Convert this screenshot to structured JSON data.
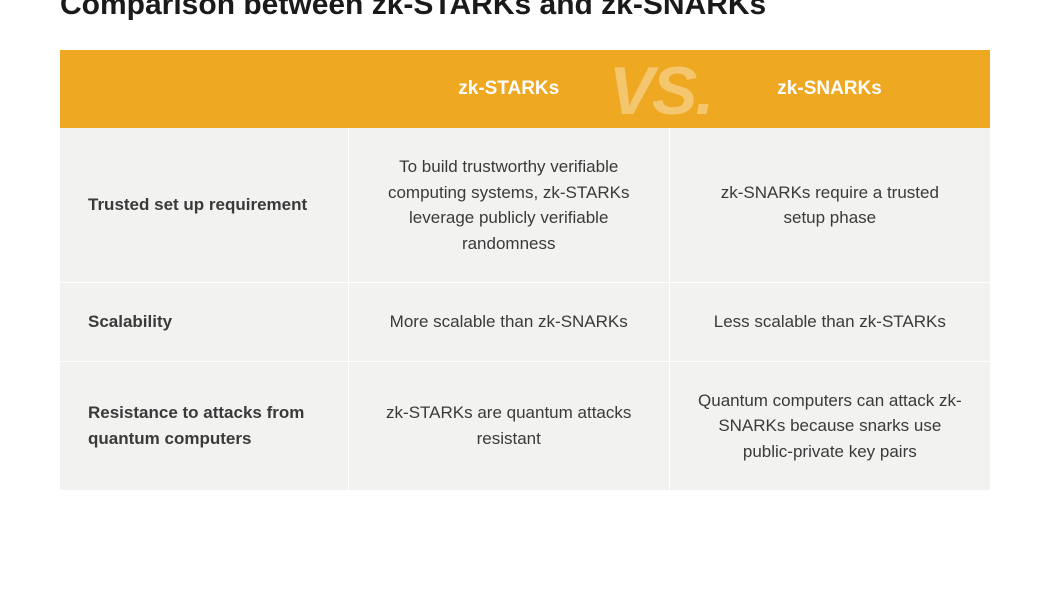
{
  "title": "Comparison between zk-STARKs and zk-SNARKs",
  "watermark": "VS.",
  "header": {
    "empty": "",
    "col1": "zk-STARKs",
    "col2": "zk-SNARKs"
  },
  "rows": [
    {
      "label": "Trusted set up requirement",
      "stark": "To build trustworthy verifiable computing systems, zk-STARKs leverage publicly verifiable randomness",
      "snark": "zk-SNARKs require a trusted setup phase"
    },
    {
      "label": "Scalability",
      "stark": "More scalable than zk-SNARKs",
      "snark": "Less scalable than zk-STARKs"
    },
    {
      "label": "Resistance to attacks from quantum computers",
      "stark": "zk-STARKs are quantum attacks resistant",
      "snark": "Quantum computers can attack zk-SNARKs because snarks use public-private key pairs"
    }
  ],
  "styling": {
    "header_bg": "#eea821",
    "header_text_color": "#ffffff",
    "row_bg": "#f2f2f0",
    "text_color": "#3a3a3a",
    "title_color": "#1a1a1a",
    "border_color": "#ffffff",
    "watermark_color": "rgba(255,255,255,0.35)",
    "title_fontsize": 30,
    "header_fontsize": 19,
    "cell_fontsize": 17,
    "col_widths": [
      "31%",
      "34.5%",
      "34.5%"
    ]
  }
}
